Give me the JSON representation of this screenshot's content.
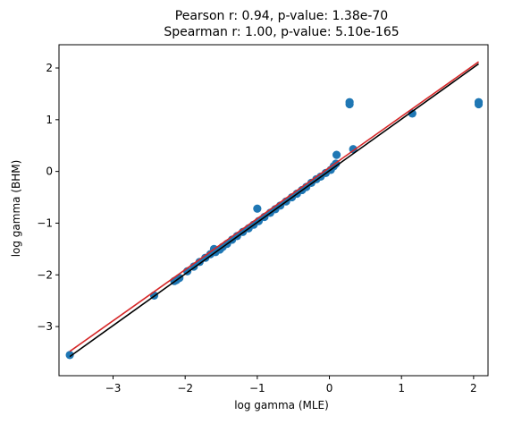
{
  "chart_data": {
    "type": "scatter",
    "title": "Pearson r: 0.94, p-value: 1.38e-70",
    "subtitle": "Spearman r: 1.00, p-value: 5.10e-165",
    "xlabel": "log gamma (MLE)",
    "ylabel": "log gamma (BHM)",
    "xlim": [
      -3.75,
      2.2
    ],
    "ylim": [
      -3.95,
      2.45
    ],
    "xticks": [
      -3,
      -2,
      -1,
      0,
      1,
      2
    ],
    "yticks": [
      -3,
      -2,
      -1,
      0,
      1,
      2
    ],
    "xtick_labels": [
      "−3",
      "−2",
      "−1",
      "0",
      "1",
      "2"
    ],
    "ytick_labels": [
      "−3",
      "−2",
      "−1",
      "0",
      "1",
      "2"
    ],
    "grid": false,
    "legend": "none",
    "points": [
      {
        "x": -3.6,
        "y": -3.55
      },
      {
        "x": -2.43,
        "y": -2.4
      },
      {
        "x": -2.15,
        "y": -2.12
      },
      {
        "x": -2.12,
        "y": -2.1
      },
      {
        "x": -2.08,
        "y": -2.06
      },
      {
        "x": -1.97,
        "y": -1.93
      },
      {
        "x": -1.88,
        "y": -1.84
      },
      {
        "x": -1.8,
        "y": -1.75
      },
      {
        "x": -1.72,
        "y": -1.67
      },
      {
        "x": -1.65,
        "y": -1.6
      },
      {
        "x": -1.6,
        "y": -1.5
      },
      {
        "x": -1.58,
        "y": -1.56
      },
      {
        "x": -1.52,
        "y": -1.51
      },
      {
        "x": -1.48,
        "y": -1.46
      },
      {
        "x": -1.42,
        "y": -1.4
      },
      {
        "x": -1.35,
        "y": -1.32
      },
      {
        "x": -1.28,
        "y": -1.25
      },
      {
        "x": -1.2,
        "y": -1.17
      },
      {
        "x": -1.12,
        "y": -1.1
      },
      {
        "x": -1.05,
        "y": -1.03
      },
      {
        "x": -1.0,
        "y": -0.72
      },
      {
        "x": -0.98,
        "y": -0.96
      },
      {
        "x": -0.9,
        "y": -0.88
      },
      {
        "x": -0.82,
        "y": -0.8
      },
      {
        "x": -0.75,
        "y": -0.73
      },
      {
        "x": -0.68,
        "y": -0.66
      },
      {
        "x": -0.6,
        "y": -0.58
      },
      {
        "x": -0.52,
        "y": -0.5
      },
      {
        "x": -0.45,
        "y": -0.43
      },
      {
        "x": -0.38,
        "y": -0.36
      },
      {
        "x": -0.32,
        "y": -0.3
      },
      {
        "x": -0.25,
        "y": -0.22
      },
      {
        "x": -0.18,
        "y": -0.15
      },
      {
        "x": -0.12,
        "y": -0.1
      },
      {
        "x": -0.05,
        "y": -0.03
      },
      {
        "x": 0.02,
        "y": 0.03
      },
      {
        "x": 0.06,
        "y": 0.1
      },
      {
        "x": 0.09,
        "y": 0.15
      },
      {
        "x": 0.1,
        "y": 0.32
      },
      {
        "x": 0.28,
        "y": 1.3
      },
      {
        "x": 0.28,
        "y": 1.34
      },
      {
        "x": 0.33,
        "y": 0.43
      },
      {
        "x": 1.15,
        "y": 1.12
      },
      {
        "x": 2.07,
        "y": 1.3
      },
      {
        "x": 2.07,
        "y": 1.34
      }
    ],
    "point_color": "#1f77b4",
    "lines": [
      {
        "color": "#000000",
        "x": [
          -3.6,
          2.07
        ],
        "y": [
          -3.58,
          2.08
        ]
      },
      {
        "color": "#d62728",
        "x": [
          -3.6,
          2.07
        ],
        "y": [
          -3.48,
          2.12
        ]
      }
    ]
  }
}
